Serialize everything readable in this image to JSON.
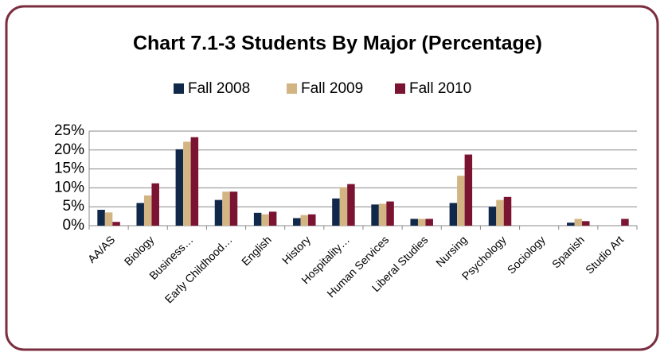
{
  "chart_data": {
    "type": "bar",
    "title": "Chart 7.1-3 Students By Major (Percentage)",
    "categories": [
      "AA/AS",
      "Biology",
      "Business…",
      "Early Childhood…",
      "English",
      "History",
      "Hospitality…",
      "Human Services",
      "Liberal Studies",
      "Nursing",
      "Psychology",
      "Sociology",
      "Spanish",
      "Studio Art"
    ],
    "series": [
      {
        "name": "Fall 2008",
        "color": "#10284a",
        "values": [
          4.2,
          6.0,
          20.2,
          6.8,
          3.4,
          2.0,
          7.2,
          5.6,
          1.8,
          6.0,
          5.0,
          0,
          0.8,
          0
        ]
      },
      {
        "name": "Fall 2009",
        "color": "#d3b584",
        "values": [
          3.5,
          8.0,
          22.2,
          9.0,
          3.0,
          2.8,
          10.2,
          5.8,
          1.8,
          13.2,
          6.8,
          0,
          1.8,
          0
        ]
      },
      {
        "name": "Fall 2010",
        "color": "#7b1432",
        "values": [
          1.0,
          11.2,
          23.4,
          9.0,
          3.7,
          3.0,
          11.0,
          6.4,
          1.8,
          18.8,
          7.6,
          0,
          1.2,
          1.8
        ]
      }
    ],
    "ylim": [
      0,
      25
    ],
    "yticks": [
      {
        "value": 0,
        "label": "0%"
      },
      {
        "value": 5,
        "label": "5%"
      },
      {
        "value": 10,
        "label": "10%"
      },
      {
        "value": 15,
        "label": "15%"
      },
      {
        "value": 20,
        "label": "20%"
      },
      {
        "value": 25,
        "label": "25%"
      }
    ],
    "grid": true
  }
}
